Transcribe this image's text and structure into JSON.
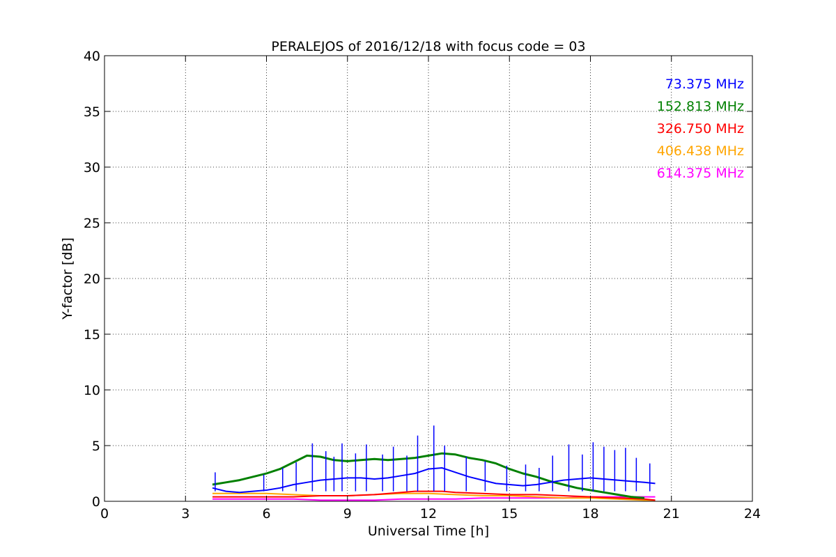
{
  "chart_data": {
    "type": "line",
    "title": "PERALEJOS of 2016/12/18 with focus code = 03",
    "xlabel": "Universal Time [h]",
    "ylabel": "Y-factor [dB]",
    "xlim": [
      0,
      24
    ],
    "ylim": [
      0,
      40
    ],
    "xticks": [
      0,
      3,
      6,
      9,
      12,
      15,
      18,
      21,
      24
    ],
    "yticks": [
      0,
      5,
      10,
      15,
      20,
      25,
      30,
      35,
      40
    ],
    "grid": true,
    "legend_position": "top-right",
    "series": [
      {
        "name": "73.375 MHz",
        "color": "#0000ff",
        "x": [
          4.0,
          4.5,
          5.0,
          5.5,
          6.0,
          6.5,
          7.0,
          7.5,
          8.0,
          8.5,
          9.0,
          9.5,
          10.0,
          10.5,
          11.0,
          11.5,
          12.0,
          12.5,
          13.0,
          13.5,
          14.0,
          14.5,
          15.0,
          15.5,
          16.0,
          16.5,
          17.0,
          17.5,
          18.0,
          18.5,
          19.0,
          19.5,
          20.0,
          20.4
        ],
        "y": [
          1.2,
          0.9,
          0.8,
          0.9,
          1.0,
          1.2,
          1.5,
          1.7,
          1.9,
          2.0,
          2.1,
          2.1,
          2.0,
          2.1,
          2.3,
          2.5,
          2.9,
          3.0,
          2.6,
          2.2,
          1.9,
          1.6,
          1.5,
          1.4,
          1.5,
          1.7,
          1.9,
          2.0,
          2.1,
          2.0,
          1.9,
          1.8,
          1.7,
          1.6
        ],
        "spikes": [
          {
            "x": 4.1,
            "y": 2.6
          },
          {
            "x": 5.9,
            "y": 2.4
          },
          {
            "x": 6.6,
            "y": 3.0
          },
          {
            "x": 7.1,
            "y": 3.5
          },
          {
            "x": 7.7,
            "y": 5.2
          },
          {
            "x": 8.2,
            "y": 4.5
          },
          {
            "x": 8.5,
            "y": 4.0
          },
          {
            "x": 8.8,
            "y": 5.2
          },
          {
            "x": 9.3,
            "y": 4.3
          },
          {
            "x": 9.7,
            "y": 5.1
          },
          {
            "x": 10.3,
            "y": 4.2
          },
          {
            "x": 10.7,
            "y": 4.9
          },
          {
            "x": 11.2,
            "y": 4.1
          },
          {
            "x": 11.6,
            "y": 5.9
          },
          {
            "x": 12.2,
            "y": 6.8
          },
          {
            "x": 12.6,
            "y": 5.0
          },
          {
            "x": 13.4,
            "y": 4.0
          },
          {
            "x": 14.1,
            "y": 3.6
          },
          {
            "x": 14.9,
            "y": 3.2
          },
          {
            "x": 15.6,
            "y": 3.3
          },
          {
            "x": 16.1,
            "y": 3.0
          },
          {
            "x": 16.6,
            "y": 4.1
          },
          {
            "x": 17.2,
            "y": 5.1
          },
          {
            "x": 17.7,
            "y": 4.2
          },
          {
            "x": 18.1,
            "y": 5.3
          },
          {
            "x": 18.5,
            "y": 4.9
          },
          {
            "x": 18.9,
            "y": 4.6
          },
          {
            "x": 19.3,
            "y": 4.8
          },
          {
            "x": 19.7,
            "y": 3.9
          },
          {
            "x": 20.2,
            "y": 3.4
          }
        ]
      },
      {
        "name": "152.813 MHz",
        "color": "#008000",
        "x": [
          4.0,
          4.5,
          5.0,
          5.5,
          6.0,
          6.5,
          7.0,
          7.5,
          8.0,
          8.5,
          9.0,
          9.5,
          10.0,
          10.5,
          11.0,
          11.5,
          12.0,
          12.5,
          13.0,
          13.5,
          14.0,
          14.5,
          15.0,
          15.5,
          16.0,
          16.5,
          17.0,
          17.5,
          18.0,
          18.5,
          19.0,
          19.5,
          20.0
        ],
        "y": [
          1.5,
          1.7,
          1.9,
          2.2,
          2.5,
          2.9,
          3.5,
          4.1,
          4.0,
          3.7,
          3.6,
          3.7,
          3.8,
          3.7,
          3.8,
          3.9,
          4.1,
          4.3,
          4.2,
          3.9,
          3.7,
          3.4,
          2.9,
          2.5,
          2.2,
          1.8,
          1.5,
          1.2,
          1.0,
          0.8,
          0.6,
          0.4,
          0.3
        ]
      },
      {
        "name": "326.750 MHz",
        "color": "#ff0000",
        "x": [
          4.0,
          5.0,
          6.0,
          7.0,
          8.0,
          9.0,
          10.0,
          11.0,
          11.5,
          12.0,
          12.5,
          13.0,
          14.0,
          15.0,
          16.0,
          17.0,
          18.0,
          19.0,
          20.0,
          20.4
        ],
        "y": [
          0.4,
          0.4,
          0.4,
          0.4,
          0.5,
          0.5,
          0.6,
          0.8,
          0.9,
          0.9,
          0.9,
          0.8,
          0.7,
          0.6,
          0.6,
          0.5,
          0.4,
          0.3,
          0.2,
          0.1
        ]
      },
      {
        "name": "406.438 MHz",
        "color": "#ffa500",
        "x": [
          4.0,
          5.0,
          6.0,
          7.0,
          8.0,
          9.0,
          10.0,
          11.0,
          12.0,
          13.0,
          14.0,
          15.0,
          16.0,
          17.0,
          18.0,
          19.0,
          20.0,
          20.4
        ],
        "y": [
          0.7,
          0.7,
          0.7,
          0.6,
          0.5,
          0.5,
          0.6,
          0.7,
          0.7,
          0.6,
          0.5,
          0.5,
          0.4,
          0.3,
          0.3,
          0.2,
          0.1,
          0.1
        ]
      },
      {
        "name": "614.375 MHz",
        "color": "#ff00ff",
        "x": [
          4.0,
          5.0,
          6.0,
          7.0,
          8.0,
          9.0,
          10.0,
          11.0,
          12.0,
          13.0,
          14.0,
          15.0,
          16.0,
          17.0,
          18.0,
          19.0,
          20.0,
          20.4
        ],
        "y": [
          0.2,
          0.2,
          0.2,
          0.2,
          0.1,
          0.1,
          0.1,
          0.2,
          0.2,
          0.2,
          0.3,
          0.3,
          0.3,
          0.3,
          0.4,
          0.4,
          0.4,
          0.4
        ]
      }
    ]
  }
}
